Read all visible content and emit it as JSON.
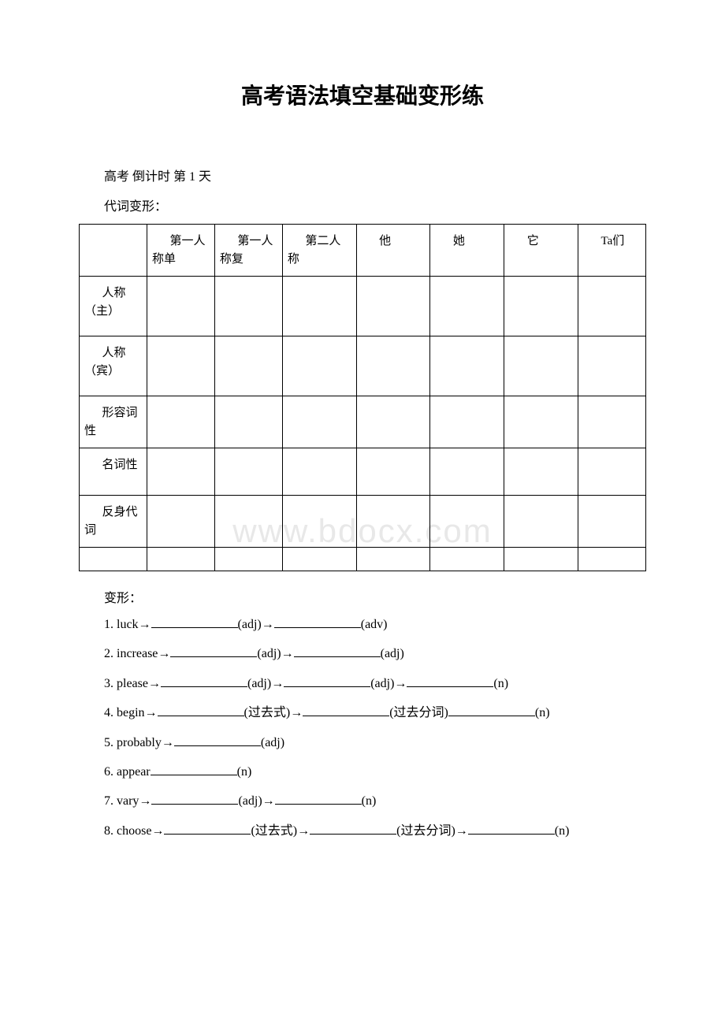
{
  "title": "高考语法填空基础变形练",
  "subtitle": "高考 倒计时 第 1 天",
  "section1_label": "代词变形：",
  "section2_label": "变形：",
  "watermark": "www.bdocx.com",
  "table": {
    "headers": [
      "",
      "第一人称单",
      "第一人称复",
      "第二人称",
      "他",
      "她",
      "它",
      "Ta们"
    ],
    "rows": [
      {
        "label": "人称（主）"
      },
      {
        "label": "人称（宾）"
      },
      {
        "label": "形容词性"
      },
      {
        "label": "名词性"
      },
      {
        "label": "反身代词"
      }
    ]
  },
  "exercises": [
    {
      "num": "1.",
      "word": "luck",
      "parts": [
        "(adj)",
        "(adv)"
      ]
    },
    {
      "num": "2.",
      "word": "increase",
      "parts": [
        "(adj)",
        "(adj)"
      ]
    },
    {
      "num": "3.",
      "word": "please",
      "parts": [
        "(adj)",
        "(adj)",
        "(n)"
      ]
    },
    {
      "num": "4.",
      "word": "begin",
      "parts": [
        "(过去式)",
        "(过去分词)",
        "(n)"
      ],
      "special": true
    },
    {
      "num": "5.",
      "word": "probably",
      "parts": [
        "(adj)"
      ]
    },
    {
      "num": "6.",
      "word": "appear",
      "parts": [
        "(n)"
      ],
      "noArrow": true
    },
    {
      "num": "7.",
      "word": "vary",
      "parts": [
        "(adj)",
        "(n)"
      ]
    },
    {
      "num": "8.",
      "word": "choose",
      "parts": [
        "(过去式)",
        "(过去分词)",
        "(n)"
      ]
    }
  ]
}
